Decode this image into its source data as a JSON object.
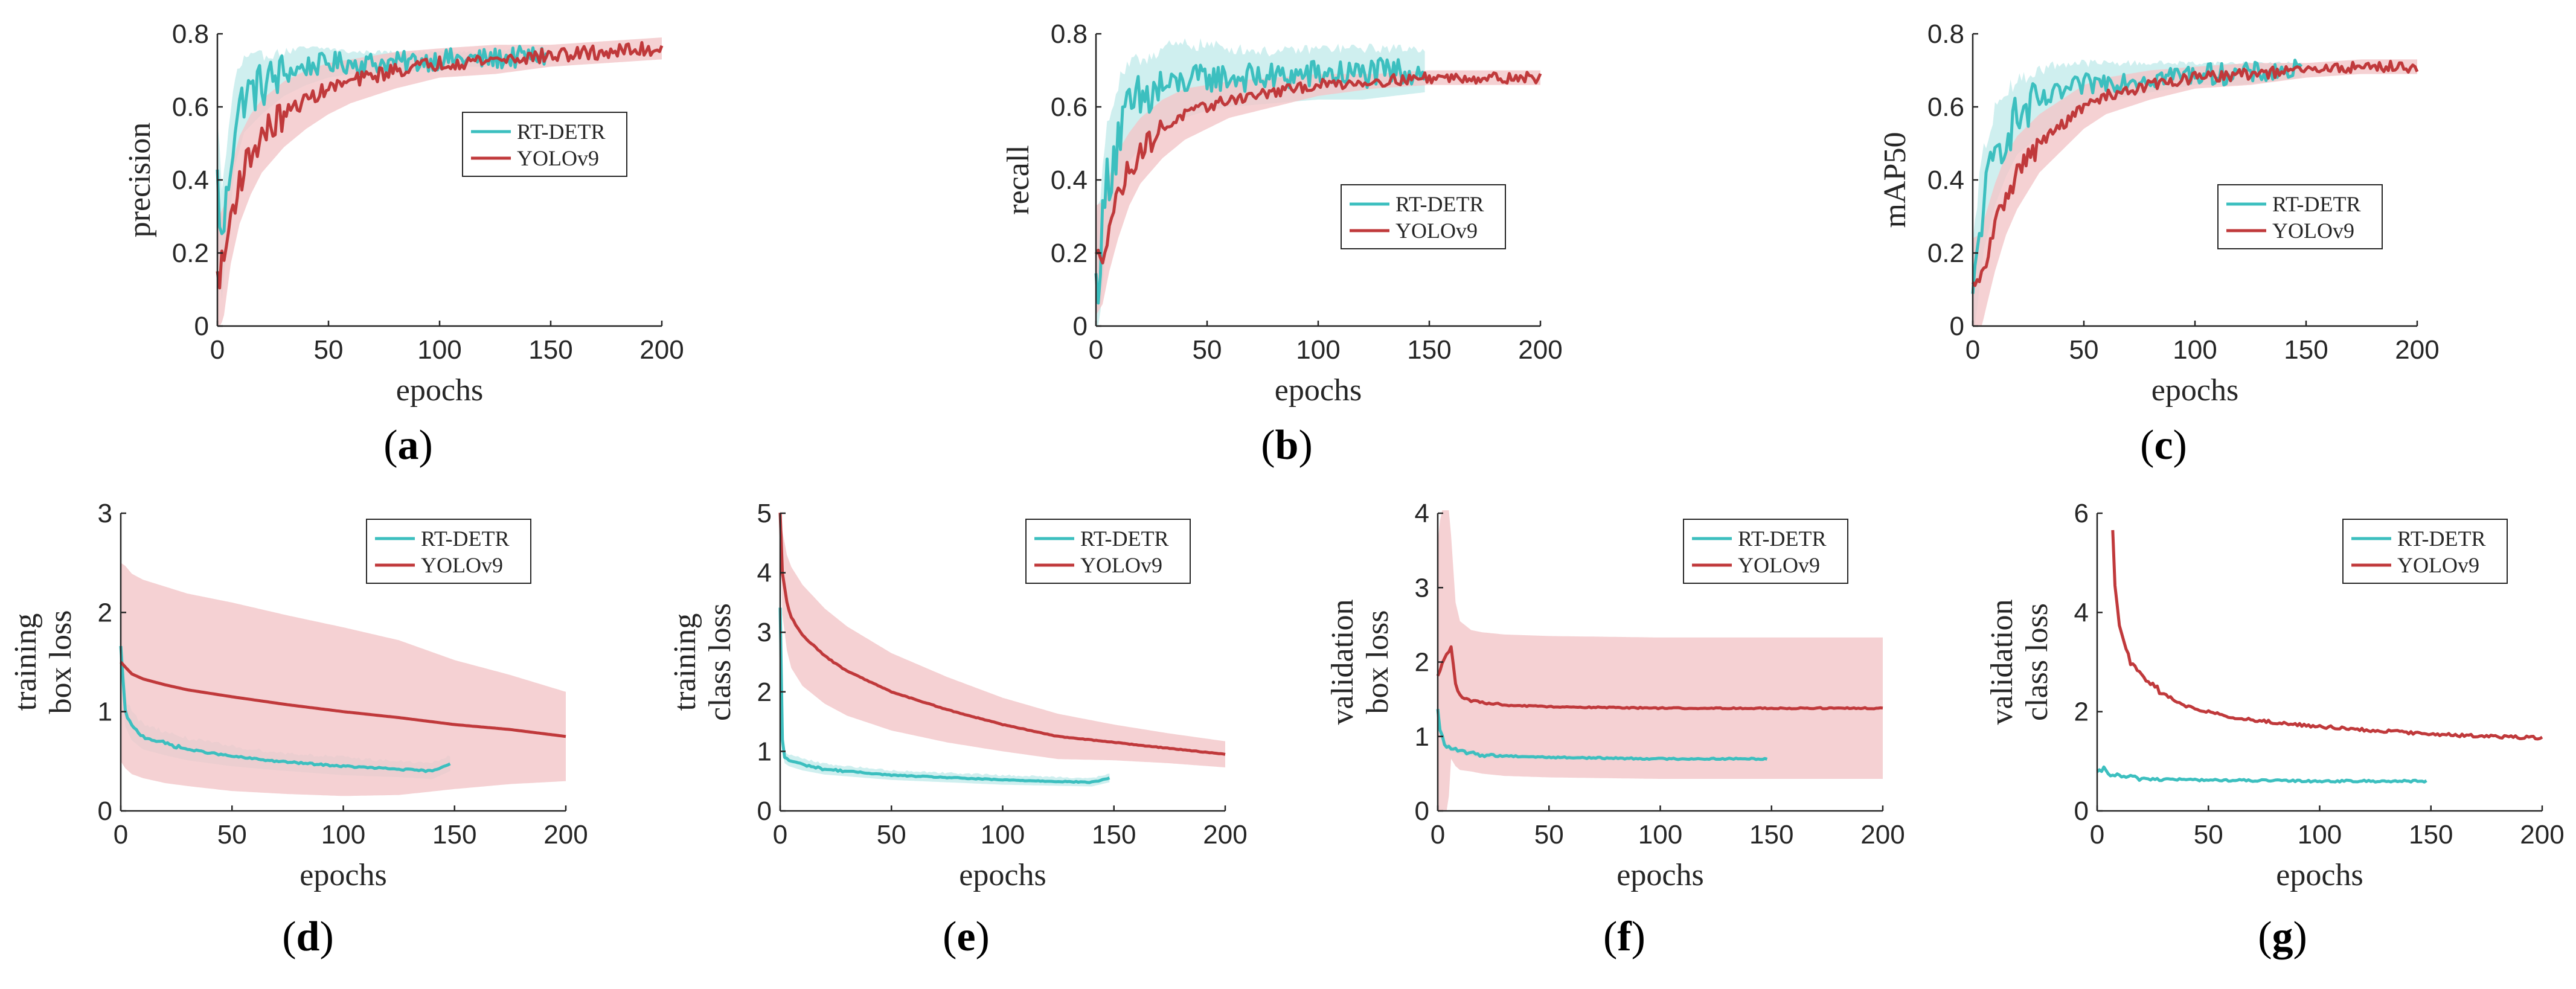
{
  "colors": {
    "rtdetr": "#3cbfbf",
    "rtdetr_band": "#bfeaea",
    "yolov9": "#c0393b",
    "yolov9_band": "#f3c6c8",
    "axis": "#262626"
  },
  "chart_data": [
    {
      "type": "line",
      "id": "a",
      "caption_letter": "a",
      "xlabel": "epochs",
      "ylabel": [
        "precision"
      ],
      "xlim": [
        0,
        200
      ],
      "ylim": [
        0,
        0.8
      ],
      "xticks": [
        "0",
        "50",
        "100",
        "150",
        "200"
      ],
      "yticks": [
        "0",
        "0.2",
        "0.4",
        "0.6",
        "0.8"
      ],
      "legend": [
        "RT-DETR",
        "YOLOv9"
      ],
      "legend_position": "center-right",
      "series": [
        {
          "name": "RT-DETR",
          "epochs": 148,
          "x": [
            0,
            2,
            5,
            8,
            12,
            20,
            30,
            40,
            50,
            60,
            80,
            100,
            120,
            148
          ],
          "y": [
            0.4,
            0.22,
            0.4,
            0.56,
            0.63,
            0.66,
            0.69,
            0.71,
            0.72,
            0.72,
            0.72,
            0.73,
            0.73,
            0.74
          ],
          "band": [
            0.18,
            0.15,
            0.13,
            0.12,
            0.1,
            0.08,
            0.06,
            0.05,
            0.04,
            0.03,
            0.03,
            0.02,
            0.02,
            0.02
          ],
          "noise": 0.03
        },
        {
          "name": "YOLOv9",
          "epochs": 200,
          "x": [
            0,
            3,
            6,
            10,
            15,
            20,
            30,
            40,
            50,
            60,
            80,
            100,
            125,
            150,
            175,
            200
          ],
          "y": [
            0.13,
            0.18,
            0.3,
            0.4,
            0.47,
            0.52,
            0.58,
            0.62,
            0.65,
            0.67,
            0.7,
            0.72,
            0.73,
            0.74,
            0.75,
            0.76
          ],
          "band": [
            0.16,
            0.15,
            0.13,
            0.12,
            0.11,
            0.1,
            0.09,
            0.08,
            0.07,
            0.06,
            0.05,
            0.04,
            0.04,
            0.03,
            0.03,
            0.03
          ],
          "noise": 0.02
        }
      ]
    },
    {
      "type": "line",
      "id": "b",
      "caption_letter": "b",
      "xlabel": "epochs",
      "ylabel": [
        "recall"
      ],
      "xlim": [
        0,
        200
      ],
      "ylim": [
        0,
        0.8
      ],
      "xticks": [
        "0",
        "50",
        "100",
        "150",
        "200"
      ],
      "yticks": [
        "0",
        "0.2",
        "0.4",
        "0.6",
        "0.8"
      ],
      "legend": [
        "RT-DETR",
        "YOLOv9"
      ],
      "legend_position": "lower-right",
      "series": [
        {
          "name": "RT-DETR",
          "epochs": 148,
          "x": [
            0,
            2,
            5,
            10,
            15,
            20,
            30,
            40,
            50,
            60,
            80,
            100,
            120,
            148
          ],
          "y": [
            0.1,
            0.2,
            0.4,
            0.52,
            0.58,
            0.61,
            0.65,
            0.67,
            0.68,
            0.68,
            0.68,
            0.69,
            0.69,
            0.7
          ],
          "band": [
            0.18,
            0.16,
            0.15,
            0.14,
            0.13,
            0.12,
            0.11,
            0.1,
            0.09,
            0.08,
            0.07,
            0.07,
            0.07,
            0.06
          ],
          "noise": 0.04
        },
        {
          "name": "YOLOv9",
          "epochs": 200,
          "x": [
            0,
            3,
            6,
            10,
            15,
            20,
            30,
            40,
            50,
            60,
            80,
            100,
            125,
            150,
            175,
            200
          ],
          "y": [
            0.18,
            0.2,
            0.28,
            0.36,
            0.43,
            0.48,
            0.54,
            0.58,
            0.6,
            0.62,
            0.64,
            0.66,
            0.67,
            0.68,
            0.68,
            0.68
          ],
          "band": [
            0.15,
            0.14,
            0.13,
            0.12,
            0.1,
            0.09,
            0.08,
            0.07,
            0.06,
            0.05,
            0.04,
            0.03,
            0.02,
            0.02,
            0.02,
            0.02
          ],
          "noise": 0.015
        }
      ]
    },
    {
      "type": "line",
      "id": "c",
      "caption_letter": "c",
      "xlabel": "epochs",
      "ylabel": [
        "mAP50"
      ],
      "xlim": [
        0,
        200
      ],
      "ylim": [
        0,
        0.8
      ],
      "xticks": [
        "0",
        "50",
        "100",
        "150",
        "200"
      ],
      "yticks": [
        "0",
        "0.2",
        "0.4",
        "0.6",
        "0.8"
      ],
      "legend": [
        "RT-DETR",
        "YOLOv9"
      ],
      "legend_position": "lower-right",
      "series": [
        {
          "name": "RT-DETR",
          "epochs": 148,
          "x": [
            0,
            2,
            5,
            10,
            15,
            20,
            30,
            40,
            50,
            60,
            80,
            100,
            120,
            148
          ],
          "y": [
            0.05,
            0.2,
            0.35,
            0.46,
            0.53,
            0.57,
            0.61,
            0.64,
            0.66,
            0.67,
            0.68,
            0.69,
            0.69,
            0.7
          ],
          "band": [
            0.16,
            0.15,
            0.14,
            0.13,
            0.12,
            0.1,
            0.09,
            0.08,
            0.06,
            0.05,
            0.04,
            0.03,
            0.03,
            0.02
          ],
          "noise": 0.03
        },
        {
          "name": "YOLOv9",
          "epochs": 200,
          "x": [
            0,
            3,
            6,
            10,
            15,
            20,
            30,
            40,
            50,
            60,
            80,
            100,
            125,
            150,
            175,
            200
          ],
          "y": [
            0.1,
            0.11,
            0.18,
            0.27,
            0.36,
            0.42,
            0.5,
            0.55,
            0.6,
            0.63,
            0.66,
            0.68,
            0.69,
            0.7,
            0.71,
            0.71
          ],
          "band": [
            0.14,
            0.14,
            0.13,
            0.12,
            0.11,
            0.1,
            0.08,
            0.07,
            0.06,
            0.05,
            0.04,
            0.03,
            0.03,
            0.02,
            0.02,
            0.02
          ],
          "noise": 0.015
        }
      ]
    },
    {
      "type": "line",
      "id": "d",
      "caption_letter": "d",
      "xlabel": "epochs",
      "ylabel": [
        "training",
        "box loss"
      ],
      "xlim": [
        0,
        200
      ],
      "ylim": [
        0,
        3
      ],
      "xticks": [
        "0",
        "50",
        "100",
        "150",
        "200"
      ],
      "yticks": [
        "0",
        "1",
        "2",
        "3"
      ],
      "legend": [
        "RT-DETR",
        "YOLOv9"
      ],
      "legend_position": "top-right",
      "series": [
        {
          "name": "RT-DETR",
          "epochs": 148,
          "x": [
            0,
            2,
            5,
            10,
            20,
            30,
            50,
            70,
            100,
            125,
            140,
            148
          ],
          "y": [
            1.65,
            1.0,
            0.85,
            0.75,
            0.68,
            0.62,
            0.55,
            0.5,
            0.45,
            0.42,
            0.4,
            0.48
          ],
          "band": [
            0.15,
            0.15,
            0.14,
            0.13,
            0.12,
            0.11,
            0.1,
            0.09,
            0.09,
            0.08,
            0.08,
            0.08
          ],
          "noise": 0.008
        },
        {
          "name": "YOLOv9",
          "epochs": 200,
          "x": [
            0,
            2,
            5,
            10,
            20,
            30,
            50,
            75,
            100,
            125,
            150,
            175,
            200
          ],
          "y": [
            1.5,
            1.45,
            1.38,
            1.33,
            1.27,
            1.22,
            1.15,
            1.07,
            1.0,
            0.94,
            0.87,
            0.82,
            0.75
          ],
          "band": [
            1.0,
            1.02,
            1.01,
            1.0,
            0.99,
            0.97,
            0.95,
            0.9,
            0.85,
            0.78,
            0.65,
            0.55,
            0.45
          ],
          "noise": 0.0
        }
      ]
    },
    {
      "type": "line",
      "id": "e",
      "caption_letter": "e",
      "xlabel": "epochs",
      "ylabel": [
        "training",
        "class loss"
      ],
      "xlim": [
        0,
        200
      ],
      "ylim": [
        0,
        5
      ],
      "xticks": [
        "0",
        "50",
        "100",
        "150",
        "200"
      ],
      "yticks": [
        "0",
        "1",
        "2",
        "3",
        "4",
        "5"
      ],
      "legend": [
        "RT-DETR",
        "YOLOv9"
      ],
      "legend_position": "top-right",
      "series": [
        {
          "name": "RT-DETR",
          "epochs": 148,
          "x": [
            0,
            1,
            2,
            4,
            10,
            20,
            50,
            100,
            140,
            148
          ],
          "y": [
            3.4,
            1.2,
            0.9,
            0.85,
            0.78,
            0.7,
            0.6,
            0.52,
            0.48,
            0.55
          ],
          "band": [
            0.15,
            0.12,
            0.1,
            0.1,
            0.1,
            0.09,
            0.08,
            0.08,
            0.07,
            0.07
          ],
          "noise": 0.008
        },
        {
          "name": "YOLOv9",
          "epochs": 200,
          "x": [
            0,
            1,
            3,
            5,
            10,
            20,
            30,
            50,
            75,
            100,
            125,
            150,
            175,
            200
          ],
          "y": [
            5.0,
            4.0,
            3.5,
            3.25,
            2.95,
            2.6,
            2.35,
            2.0,
            1.7,
            1.45,
            1.25,
            1.15,
            1.05,
            0.95
          ],
          "band": [
            0.2,
            0.7,
            0.8,
            0.85,
            0.85,
            0.8,
            0.75,
            0.65,
            0.55,
            0.45,
            0.38,
            0.3,
            0.25,
            0.22
          ],
          "noise": 0.005
        }
      ]
    },
    {
      "type": "line",
      "id": "f",
      "caption_letter": "f",
      "xlabel": "epochs",
      "ylabel": [
        "validation",
        "box loss"
      ],
      "xlim": [
        0,
        200
      ],
      "ylim": [
        0,
        4
      ],
      "xticks": [
        "0",
        "50",
        "100",
        "150",
        "200"
      ],
      "yticks": [
        "0",
        "1",
        "2",
        "3",
        "4"
      ],
      "legend": [
        "RT-DETR",
        "YOLOv9"
      ],
      "legend_position": "top-right",
      "series": [
        {
          "name": "RT-DETR",
          "epochs": 148,
          "x": [
            0,
            1,
            2,
            3,
            5,
            10,
            20,
            50,
            100,
            148
          ],
          "y": [
            1.35,
            1.1,
            1.0,
            0.9,
            0.85,
            0.8,
            0.75,
            0.72,
            0.7,
            0.7
          ],
          "band": [
            0.05,
            0.05,
            0.05,
            0.05,
            0.04,
            0.04,
            0.04,
            0.03,
            0.03,
            0.03
          ],
          "noise": 0.01
        },
        {
          "name": "YOLOv9",
          "epochs": 200,
          "x": [
            0,
            2,
            4,
            6,
            8,
            10,
            15,
            20,
            30,
            50,
            100,
            150,
            200
          ],
          "y": [
            1.8,
            2.0,
            2.1,
            2.2,
            1.7,
            1.55,
            1.48,
            1.45,
            1.42,
            1.4,
            1.38,
            1.38,
            1.38
          ],
          "band": [
            1.8,
            2.2,
            2.4,
            1.5,
            1.1,
            1.0,
            0.95,
            0.95,
            0.95,
            0.95,
            0.95,
            0.95,
            0.95
          ],
          "noise": 0.008
        }
      ]
    },
    {
      "type": "line",
      "id": "g",
      "caption_letter": "g",
      "xlabel": "epochs",
      "ylabel": [
        "validation",
        "class loss"
      ],
      "xlim": [
        0,
        200
      ],
      "ylim": [
        0,
        6
      ],
      "xticks": [
        "0",
        "50",
        "100",
        "150",
        "200"
      ],
      "yticks": [
        "0",
        "2",
        "4",
        "6"
      ],
      "legend": [
        "RT-DETR",
        "YOLOv9"
      ],
      "legend_position": "top-right",
      "series": [
        {
          "name": "RT-DETR",
          "epochs": 148,
          "x": [
            0,
            3,
            5,
            10,
            20,
            50,
            100,
            148
          ],
          "y": [
            0.75,
            0.85,
            0.75,
            0.7,
            0.65,
            0.62,
            0.6,
            0.6
          ],
          "band": [
            0,
            0,
            0,
            0,
            0,
            0,
            0,
            0
          ],
          "noise": 0.02
        },
        {
          "name": "YOLOv9",
          "epochs": 200,
          "start": 7,
          "x": [
            7,
            8,
            10,
            12,
            15,
            20,
            30,
            40,
            60,
            80,
            100,
            125,
            150,
            175,
            200
          ],
          "y": [
            5.6,
            4.5,
            3.8,
            3.4,
            3.0,
            2.7,
            2.35,
            2.1,
            1.9,
            1.78,
            1.7,
            1.62,
            1.55,
            1.5,
            1.47
          ],
          "band": [
            0,
            0,
            0,
            0,
            0,
            0,
            0,
            0,
            0,
            0,
            0,
            0,
            0,
            0,
            0
          ],
          "noise": 0.03
        }
      ]
    }
  ]
}
